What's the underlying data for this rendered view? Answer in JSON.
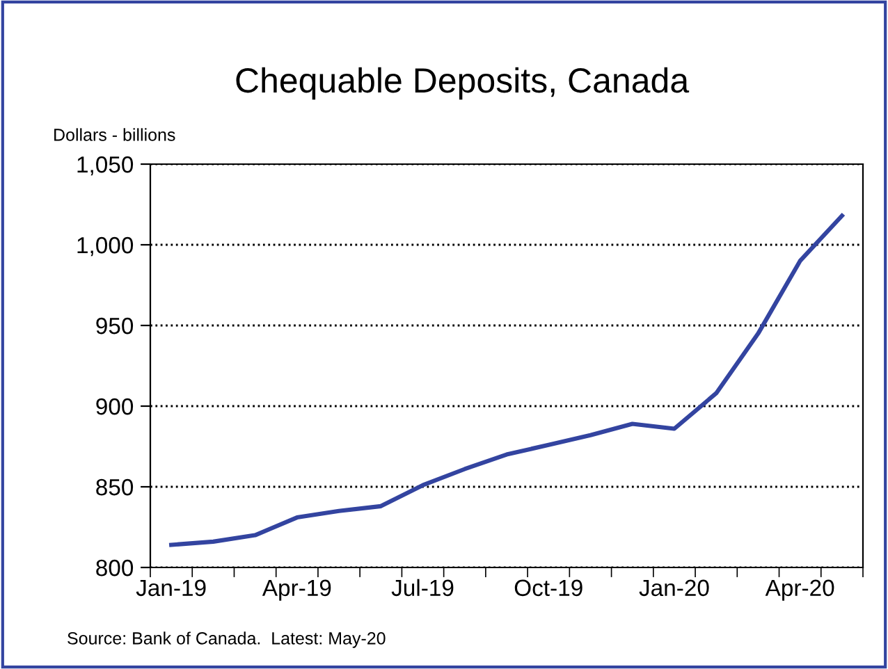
{
  "chart_data": {
    "type": "line",
    "title": "Chequable Deposits, Canada",
    "ylabel": "Dollars - billions",
    "categories": [
      "Jan-19",
      null,
      null,
      "Apr-19",
      null,
      null,
      "Jul-19",
      null,
      null,
      "Oct-19",
      null,
      null,
      "Jan-20",
      null,
      null,
      "Apr-20",
      null
    ],
    "series": [
      {
        "color": "#3344a0",
        "values": [
          814,
          816,
          820,
          831,
          835,
          838,
          851,
          861,
          870,
          876,
          882,
          889,
          886,
          908,
          945,
          990,
          1018
        ]
      }
    ],
    "ylim": [
      800,
      1050
    ],
    "yticks": [
      800,
      850,
      900,
      950,
      {
        "value": 1000,
        "label": "1,000"
      },
      {
        "value": 1050,
        "label": "1,050"
      }
    ],
    "grid": "y",
    "line_style": "solid",
    "marker": "none",
    "annotations": [
      "Source: Bank of Canada.  Latest: May-20"
    ]
  }
}
